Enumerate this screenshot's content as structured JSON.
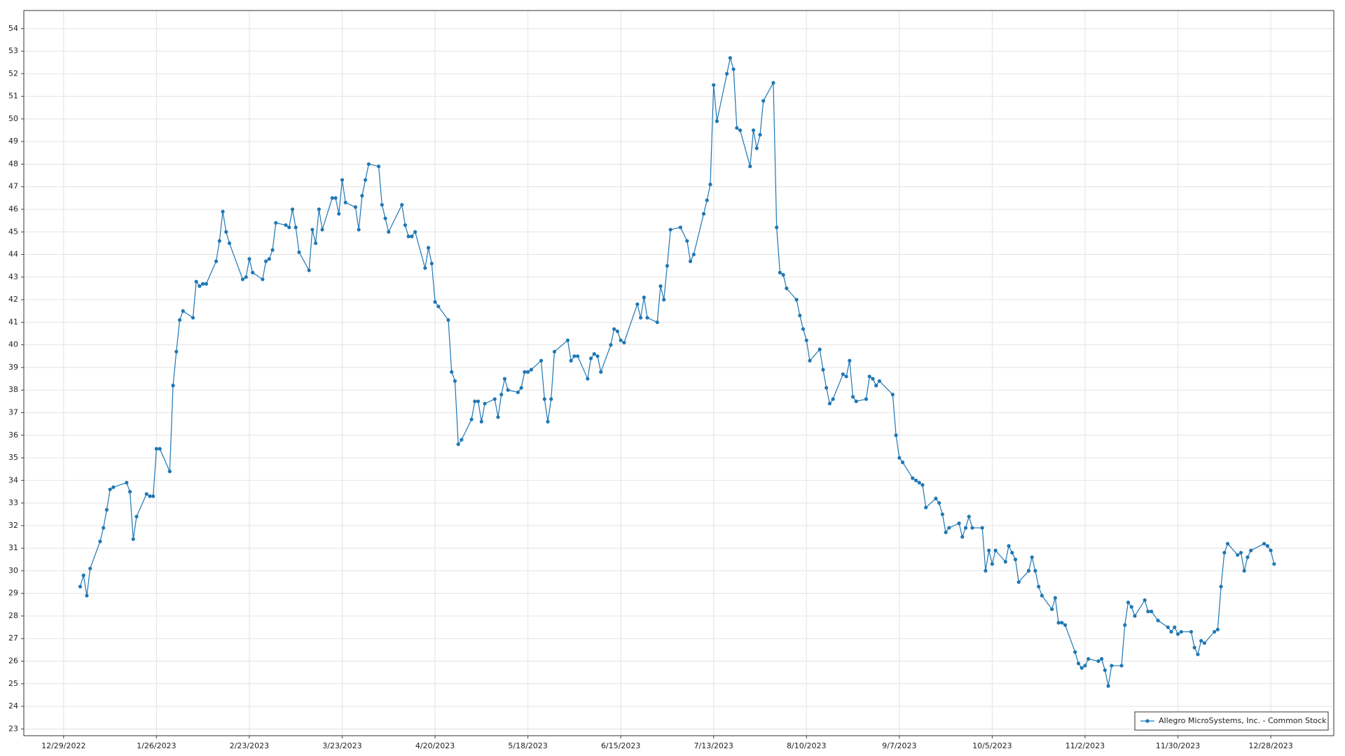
{
  "chart_data": {
    "type": "line",
    "x": [
      "1/3/2023",
      "1/4/2023",
      "1/5/2023",
      "1/6/2023",
      "1/9/2023",
      "1/10/2023",
      "1/11/2023",
      "1/12/2023",
      "1/13/2023",
      "1/17/2023",
      "1/18/2023",
      "1/19/2023",
      "1/20/2023",
      "1/23/2023",
      "1/24/2023",
      "1/25/2023",
      "1/26/2023",
      "1/27/2023",
      "1/30/2023",
      "1/31/2023",
      "2/1/2023",
      "2/2/2023",
      "2/3/2023",
      "2/6/2023",
      "2/7/2023",
      "2/8/2023",
      "2/9/2023",
      "2/10/2023",
      "2/13/2023",
      "2/14/2023",
      "2/15/2023",
      "2/16/2023",
      "2/17/2023",
      "2/21/2023",
      "2/22/2023",
      "2/23/2023",
      "2/24/2023",
      "2/27/2023",
      "2/28/2023",
      "3/1/2023",
      "3/2/2023",
      "3/3/2023",
      "3/6/2023",
      "3/7/2023",
      "3/8/2023",
      "3/9/2023",
      "3/10/2023",
      "3/13/2023",
      "3/14/2023",
      "3/15/2023",
      "3/16/2023",
      "3/17/2023",
      "3/20/2023",
      "3/21/2023",
      "3/22/2023",
      "3/23/2023",
      "3/24/2023",
      "3/27/2023",
      "3/28/2023",
      "3/29/2023",
      "3/30/2023",
      "3/31/2023",
      "4/3/2023",
      "4/4/2023",
      "4/5/2023",
      "4/6/2023",
      "4/10/2023",
      "4/11/2023",
      "4/12/2023",
      "4/13/2023",
      "4/14/2023",
      "4/17/2023",
      "4/18/2023",
      "4/19/2023",
      "4/20/2023",
      "4/21/2023",
      "4/24/2023",
      "4/25/2023",
      "4/26/2023",
      "4/27/2023",
      "4/28/2023",
      "5/1/2023",
      "5/2/2023",
      "5/3/2023",
      "5/4/2023",
      "5/5/2023",
      "5/8/2023",
      "5/9/2023",
      "5/10/2023",
      "5/11/2023",
      "5/12/2023",
      "5/15/2023",
      "5/16/2023",
      "5/17/2023",
      "5/18/2023",
      "5/19/2023",
      "5/22/2023",
      "5/23/2023",
      "5/24/2023",
      "5/25/2023",
      "5/26/2023",
      "5/30/2023",
      "5/31/2023",
      "6/1/2023",
      "6/2/2023",
      "6/5/2023",
      "6/6/2023",
      "6/7/2023",
      "6/8/2023",
      "6/9/2023",
      "6/12/2023",
      "6/13/2023",
      "6/14/2023",
      "6/15/2023",
      "6/16/2023",
      "6/20/2023",
      "6/21/2023",
      "6/22/2023",
      "6/23/2023",
      "6/26/2023",
      "6/27/2023",
      "6/28/2023",
      "6/29/2023",
      "6/30/2023",
      "7/3/2023",
      "7/5/2023",
      "7/6/2023",
      "7/7/2023",
      "7/10/2023",
      "7/11/2023",
      "7/12/2023",
      "7/13/2023",
      "7/14/2023",
      "7/17/2023",
      "7/18/2023",
      "7/19/2023",
      "7/20/2023",
      "7/21/2023",
      "7/24/2023",
      "7/25/2023",
      "7/26/2023",
      "7/27/2023",
      "7/28/2023",
      "7/31/2023",
      "8/1/2023",
      "8/2/2023",
      "8/3/2023",
      "8/4/2023",
      "8/7/2023",
      "8/8/2023",
      "8/9/2023",
      "8/10/2023",
      "8/11/2023",
      "8/14/2023",
      "8/15/2023",
      "8/16/2023",
      "8/17/2023",
      "8/18/2023",
      "8/21/2023",
      "8/22/2023",
      "8/23/2023",
      "8/24/2023",
      "8/25/2023",
      "8/28/2023",
      "8/29/2023",
      "8/30/2023",
      "8/31/2023",
      "9/1/2023",
      "9/5/2023",
      "9/6/2023",
      "9/7/2023",
      "9/8/2023",
      "9/11/2023",
      "9/12/2023",
      "9/13/2023",
      "9/14/2023",
      "9/15/2023",
      "9/18/2023",
      "9/19/2023",
      "9/20/2023",
      "9/21/2023",
      "9/22/2023",
      "9/25/2023",
      "9/26/2023",
      "9/27/2023",
      "9/28/2023",
      "9/29/2023",
      "10/2/2023",
      "10/3/2023",
      "10/4/2023",
      "10/5/2023",
      "10/6/2023",
      "10/9/2023",
      "10/10/2023",
      "10/11/2023",
      "10/12/2023",
      "10/13/2023",
      "10/16/2023",
      "10/17/2023",
      "10/18/2023",
      "10/19/2023",
      "10/20/2023",
      "10/23/2023",
      "10/24/2023",
      "10/25/2023",
      "10/26/2023",
      "10/27/2023",
      "10/30/2023",
      "10/31/2023",
      "11/1/2023",
      "11/2/2023",
      "11/3/2023",
      "11/6/2023",
      "11/7/2023",
      "11/8/2023",
      "11/9/2023",
      "11/10/2023",
      "11/13/2023",
      "11/14/2023",
      "11/15/2023",
      "11/16/2023",
      "11/17/2023",
      "11/20/2023",
      "11/21/2023",
      "11/22/2023",
      "11/24/2023",
      "11/27/2023",
      "11/28/2023",
      "11/29/2023",
      "11/30/2023",
      "12/1/2023",
      "12/4/2023",
      "12/5/2023",
      "12/6/2023",
      "12/7/2023",
      "12/8/2023",
      "12/11/2023",
      "12/12/2023",
      "12/13/2023",
      "12/14/2023",
      "12/15/2023",
      "12/18/2023",
      "12/19/2023",
      "12/20/2023",
      "12/21/2023",
      "12/22/2023",
      "12/26/2023",
      "12/27/2023",
      "12/28/2023",
      "12/29/2023"
    ],
    "series": [
      {
        "name": "Allegro MicroSystems, Inc. - Common Stock",
        "color": "#1f77b4",
        "values": [
          29.3,
          29.8,
          28.9,
          30.1,
          31.3,
          31.9,
          32.7,
          33.6,
          33.7,
          33.9,
          33.5,
          31.4,
          32.4,
          33.4,
          33.3,
          33.3,
          35.4,
          35.4,
          34.4,
          38.2,
          39.7,
          41.1,
          41.5,
          41.2,
          42.8,
          42.6,
          42.7,
          42.7,
          43.7,
          44.6,
          45.9,
          45.0,
          44.5,
          42.9,
          43.0,
          43.8,
          43.2,
          42.9,
          43.7,
          43.8,
          44.2,
          45.4,
          45.3,
          45.2,
          46.0,
          45.2,
          44.1,
          43.3,
          45.1,
          44.5,
          46.0,
          45.1,
          46.5,
          46.5,
          45.8,
          47.3,
          46.3,
          46.1,
          45.1,
          46.6,
          47.3,
          48.0,
          47.9,
          46.2,
          45.6,
          45.0,
          46.2,
          45.3,
          44.8,
          44.8,
          45.0,
          43.4,
          44.3,
          43.6,
          41.9,
          41.7,
          41.1,
          38.8,
          38.4,
          35.6,
          35.8,
          36.7,
          37.5,
          37.5,
          36.6,
          37.4,
          37.6,
          36.8,
          37.8,
          38.5,
          38.0,
          37.9,
          38.1,
          38.8,
          38.8,
          38.9,
          39.3,
          37.6,
          36.6,
          37.6,
          39.7,
          40.2,
          39.3,
          39.5,
          39.5,
          38.5,
          39.4,
          39.6,
          39.5,
          38.8,
          40.0,
          40.7,
          40.6,
          40.2,
          40.1,
          41.8,
          41.2,
          42.1,
          41.2,
          41.0,
          42.6,
          42.0,
          43.5,
          45.1,
          45.2,
          44.6,
          43.7,
          44.0,
          45.8,
          46.4,
          47.1,
          51.5,
          49.9,
          52.0,
          52.7,
          52.2,
          49.6,
          49.5,
          47.9,
          49.5,
          48.7,
          49.3,
          50.8,
          51.6,
          45.2,
          43.2,
          43.1,
          42.5,
          42.0,
          41.3,
          40.7,
          40.2,
          39.3,
          39.8,
          38.9,
          38.1,
          37.4,
          37.6,
          38.7,
          38.6,
          39.3,
          37.7,
          37.5,
          37.6,
          38.6,
          38.5,
          38.2,
          38.4,
          37.8,
          36.0,
          35.0,
          34.8,
          34.1,
          34.0,
          33.9,
          33.8,
          32.8,
          33.2,
          33.0,
          32.5,
          31.7,
          31.9,
          32.1,
          31.5,
          31.9,
          32.4,
          31.9,
          31.9,
          30.0,
          30.9,
          30.3,
          30.9,
          30.4,
          31.1,
          30.8,
          30.5,
          29.5,
          30.0,
          30.6,
          30.0,
          29.3,
          28.9,
          28.3,
          28.8,
          27.7,
          27.7,
          27.6,
          26.4,
          25.9,
          25.7,
          25.8,
          26.1,
          26.0,
          26.1,
          25.6,
          24.9,
          25.8,
          25.8,
          27.6,
          28.6,
          28.4,
          28.0,
          28.7,
          28.2,
          28.2,
          27.8,
          27.5,
          27.3,
          27.5,
          27.2,
          27.3,
          27.3,
          26.6,
          26.3,
          26.9,
          26.8,
          27.3,
          27.4,
          29.3,
          30.8,
          31.2,
          30.7,
          30.8,
          30.0,
          30.6,
          30.9,
          31.2,
          31.1,
          30.9,
          30.3
        ]
      }
    ],
    "xlim": [
      "12/17/2022",
      "1/16/2024"
    ],
    "xticks": [
      "12/29/2022",
      "1/26/2023",
      "2/23/2023",
      "3/23/2023",
      "4/20/2023",
      "5/18/2023",
      "6/15/2023",
      "7/13/2023",
      "8/10/2023",
      "9/7/2023",
      "10/5/2023",
      "11/2/2023",
      "11/30/2023",
      "12/28/2023"
    ],
    "ylim": [
      22.7,
      54.8
    ],
    "yticks": [
      23,
      24,
      25,
      26,
      27,
      28,
      29,
      30,
      31,
      32,
      33,
      34,
      35,
      36,
      37,
      38,
      39,
      40,
      41,
      42,
      43,
      44,
      45,
      46,
      47,
      48,
      49,
      50,
      51,
      52,
      53,
      54
    ],
    "grid": true,
    "legend": "lower right"
  }
}
